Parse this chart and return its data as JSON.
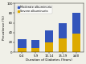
{
  "categories": [
    "0-4",
    "5-9",
    "10-14",
    "15-19",
    "≥20"
  ],
  "moderate": [
    18,
    17,
    25,
    32,
    42
  ],
  "severe": [
    8,
    8,
    20,
    28,
    38
  ],
  "moderate_color": "#3355bb",
  "severe_color": "#ddaa00",
  "ylabel": "Prevalence (%)",
  "xlabel": "Duration of Diabetes (Years)",
  "legend_moderate": "Moderate albuminuria",
  "legend_severe": "Severe albuminuria",
  "ylim": [
    0,
    100
  ],
  "axis_fontsize": 3.0,
  "tick_fontsize": 2.8,
  "legend_fontsize": 2.5,
  "bg_color": "#f0f0e8"
}
